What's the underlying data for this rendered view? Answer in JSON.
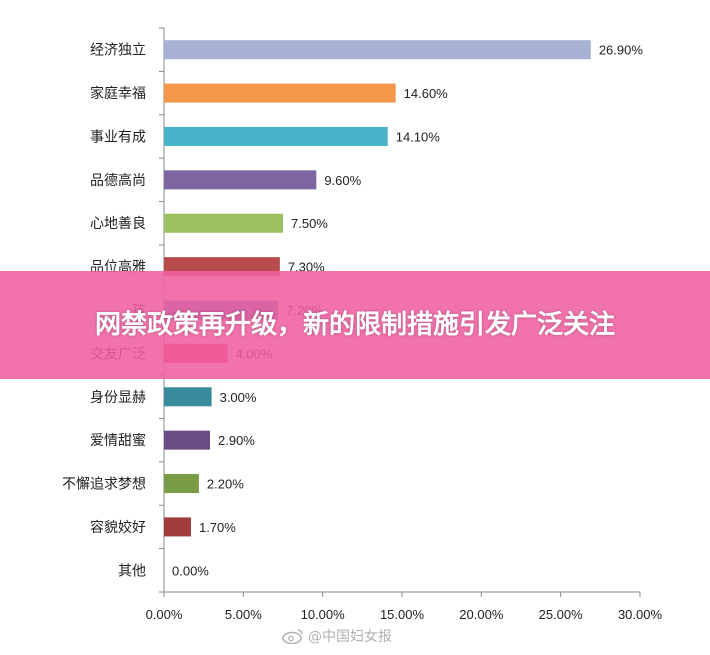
{
  "chart_data": {
    "type": "bar",
    "orientation": "horizontal",
    "categories": [
      "经济独立",
      "家庭幸福",
      "事业有成",
      "品德高尚",
      "心地善良",
      "品位高雅",
      "孩",
      "交友广泛",
      "身份显赫",
      "爱情甜蜜",
      "不懈追求梦想",
      "容貌姣好",
      "其他"
    ],
    "values": [
      26.9,
      14.6,
      14.1,
      9.6,
      7.5,
      7.3,
      7.2,
      4.0,
      3.0,
      2.9,
      2.2,
      1.7,
      0.0
    ],
    "value_labels": [
      "26.90%",
      "14.60%",
      "14.10%",
      "9.60%",
      "7.50%",
      "7.30%",
      "7.20%",
      "4.00%",
      "3.00%",
      "2.90%",
      "2.20%",
      "1.70%",
      "0.00%"
    ],
    "colors": [
      "#a7b1d4",
      "#f5974a",
      "#47b3c9",
      "#8065a3",
      "#9cc060",
      "#b84c4d",
      "#3c84b8",
      "#e0445e",
      "#3a8a9e",
      "#6a4d85",
      "#7a9c46",
      "#a23c3a",
      "#888888"
    ],
    "xlim": [
      0,
      30
    ],
    "xticks": [
      "0.00%",
      "5.00%",
      "10.00%",
      "15.00%",
      "20.00%",
      "25.00%",
      "30.00%"
    ],
    "grid": false,
    "title": "",
    "xlabel": "",
    "ylabel": ""
  },
  "banner": {
    "text": "网禁政策再升级，新的限制措施引发广泛关注"
  },
  "watermark": {
    "text": "@中国妇女报",
    "icon": "weibo-icon"
  }
}
